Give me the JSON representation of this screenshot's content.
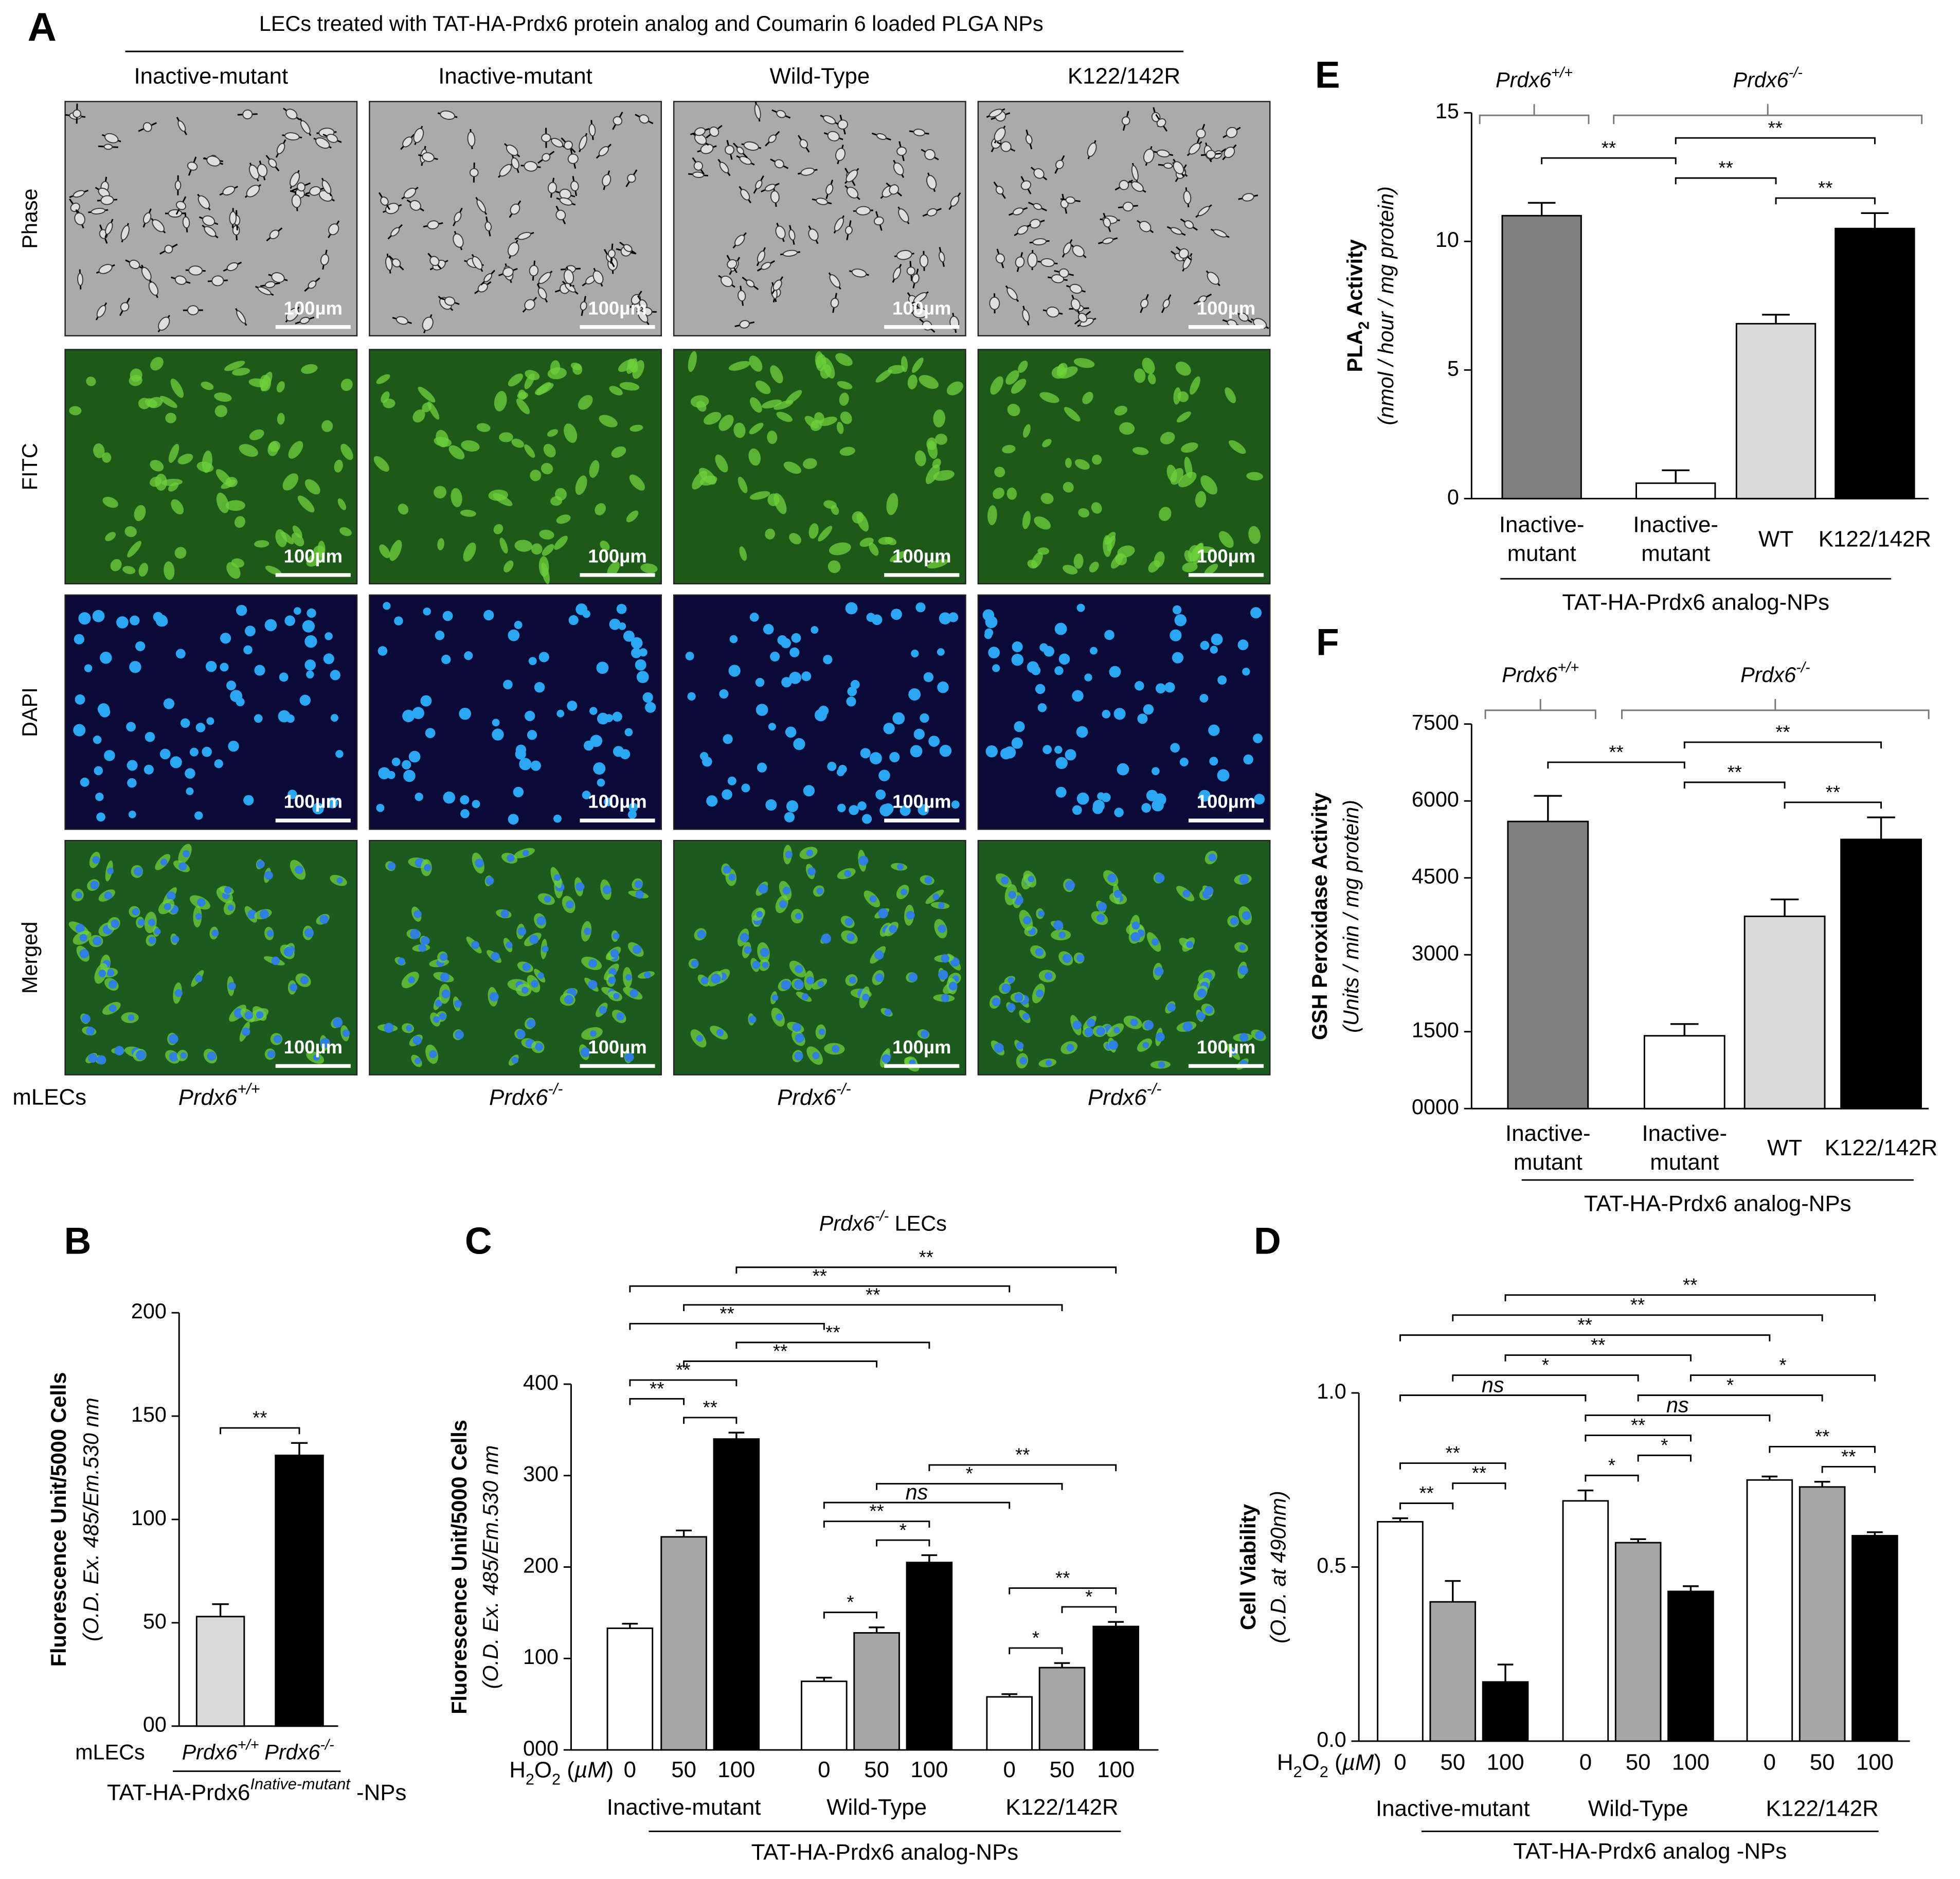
{
  "panel_a": {
    "label": "A",
    "title": "LECs treated with TAT-HA-Prdx6 protein analog and Coumarin 6 loaded PLGA NPs",
    "columns": [
      "Inactive-mutant",
      "Inactive-mutant",
      "Wild-Type",
      "K122/142R"
    ],
    "rows": [
      "Phase",
      "FITC",
      "DAPI",
      "Merged"
    ],
    "scale_bar": "100µm",
    "row_label": "mLECs",
    "genotypes": [
      [
        {
          "t": "Prdx6",
          "italic": true
        },
        {
          "t": "+/+",
          "sup": true,
          "italic": true
        }
      ],
      [
        {
          "t": "Prdx6",
          "italic": true
        },
        {
          "t": "-/-",
          "sup": true,
          "italic": true
        }
      ],
      [
        {
          "t": "Prdx6",
          "italic": true
        },
        {
          "t": "-/-",
          "sup": true,
          "italic": true
        }
      ],
      [
        {
          "t": "Prdx6",
          "italic": true
        },
        {
          "t": "-/-",
          "sup": true,
          "italic": true
        }
      ]
    ]
  },
  "chart_data": [
    {
      "type": "bar",
      "panel": "E",
      "ylabel": [
        {
          "t": "PLA"
        },
        {
          "t": "2",
          "sub": true
        },
        {
          "t": " Activity"
        }
      ],
      "ylabel_note": "(nmol / hour / mg protein)",
      "categories": [
        [
          "Inactive-",
          "mutant"
        ],
        [
          "Inactive-",
          "mutant"
        ],
        [
          "WT"
        ],
        [
          "K122/142R"
        ]
      ],
      "values": [
        11.0,
        0.6,
        6.8,
        10.5
      ],
      "errors": [
        0.5,
        0.5,
        0.35,
        0.6
      ],
      "colors": [
        "#7f7f7f",
        "#ffffff",
        "#d9d9d9",
        "#000000"
      ],
      "ylim": [
        0,
        15
      ],
      "yticks": [
        0,
        5,
        10,
        15
      ],
      "genotype_groups": [
        {
          "label": [
            {
              "t": "Prdx6",
              "italic": true
            },
            {
              "t": "+/+",
              "sup": true,
              "italic": true
            }
          ],
          "span": [
            0,
            0
          ]
        },
        {
          "label": [
            {
              "t": "Prdx6",
              "italic": true
            },
            {
              "t": "-/-",
              "sup": true,
              "italic": true
            }
          ],
          "span": [
            1,
            3
          ]
        }
      ],
      "xlabel": "TAT-HA-Prdx6 analog-NPs",
      "annotations": [
        {
          "between": [
            1,
            2
          ],
          "label": "**"
        },
        {
          "between": [
            2,
            3
          ],
          "label": "**"
        },
        {
          "between": [
            0,
            1
          ],
          "label": "**"
        },
        {
          "between": [
            1,
            3
          ],
          "label": "**"
        }
      ]
    },
    {
      "type": "bar",
      "panel": "F",
      "ylabel": "GSH Peroxidase Activity",
      "ylabel_note": "(Units / min / mg protein)",
      "categories": [
        [
          "Inactive-",
          "mutant"
        ],
        [
          "Inactive-",
          "mutant"
        ],
        [
          "WT"
        ],
        [
          "K122/142R"
        ]
      ],
      "values": [
        5600,
        1420,
        3750,
        5250
      ],
      "errors": [
        500,
        230,
        330,
        430
      ],
      "colors": [
        "#7f7f7f",
        "#ffffff",
        "#d9d9d9",
        "#000000"
      ],
      "ylim": [
        0,
        7500
      ],
      "yticks": [
        {
          "value": 0,
          "label": "0000"
        },
        1500,
        3000,
        4500,
        6000,
        7500
      ],
      "genotype_groups": [
        {
          "label": [
            {
              "t": "Prdx6",
              "italic": true
            },
            {
              "t": "+/+",
              "sup": true,
              "italic": true
            }
          ],
          "span": [
            0,
            0
          ]
        },
        {
          "label": [
            {
              "t": "Prdx6",
              "italic": true
            },
            {
              "t": "-/-",
              "sup": true,
              "italic": true
            }
          ],
          "span": [
            1,
            3
          ]
        }
      ],
      "xlabel": "TAT-HA-Prdx6 analog-NPs",
      "annotations": [
        {
          "between": [
            1,
            2
          ],
          "label": "**"
        },
        {
          "between": [
            2,
            3
          ],
          "label": "**"
        },
        {
          "between": [
            0,
            1
          ],
          "label": "**"
        },
        {
          "between": [
            1,
            3
          ],
          "label": "**"
        }
      ]
    },
    {
      "type": "bar",
      "panel": "B",
      "ylabel": "Fluorescence Unit/5000 Cells",
      "ylabel_note": "(O.D. Ex. 485/Em.530 nm",
      "category_title": "mLECs",
      "categories": [
        [
          {
            "t": "Prdx6",
            "italic": true
          },
          {
            "t": "+/+",
            "sup": true,
            "italic": true
          }
        ],
        [
          {
            "t": "Prdx6",
            "italic": true
          },
          {
            "t": "-/-",
            "sup": true,
            "italic": true
          }
        ]
      ],
      "values": [
        53,
        131
      ],
      "errors": [
        6,
        6
      ],
      "colors": [
        "#d9d9d9",
        "#000000"
      ],
      "ylim": [
        0,
        200
      ],
      "yticks": [
        {
          "value": 0,
          "label": "00"
        },
        50,
        100,
        150,
        200
      ],
      "xlabel": [
        {
          "t": "TAT-HA-Prdx6"
        },
        {
          "t": "Inative-mutant",
          "sup": true,
          "italic": true
        },
        {
          "t": " -NPs"
        }
      ],
      "annotations": [
        {
          "between": [
            0,
            1
          ],
          "label": "**"
        }
      ]
    },
    {
      "type": "bar",
      "panel": "C",
      "title": [
        {
          "t": "Prdx6",
          "italic": true
        },
        {
          "t": "-/-",
          "sup": true,
          "italic": true
        },
        {
          "t": " LECs"
        }
      ],
      "ylabel": "Fluorescence Unit/5000 Cells",
      "ylabel_note": "(O.D. Ex. 485/Em.530 nm",
      "xprefix": [
        {
          "t": "H"
        },
        {
          "t": "2",
          "sub": true
        },
        {
          "t": "O"
        },
        {
          "t": "2",
          "sub": true
        },
        {
          "t": " ("
        },
        {
          "t": "µM",
          "italic": true
        },
        {
          "t": ")"
        }
      ],
      "categories": [
        "Inactive-mutant",
        "Wild-Type",
        "K122/142R"
      ],
      "series": [
        {
          "name": "0",
          "color": "#ffffff",
          "values": [
            133,
            75,
            58
          ],
          "errors": [
            5,
            4,
            3
          ]
        },
        {
          "name": "50",
          "color": "#a6a6a6",
          "values": [
            233,
            128,
            90
          ],
          "errors": [
            7,
            6,
            5
          ]
        },
        {
          "name": "100",
          "color": "#000000",
          "values": [
            340,
            205,
            135
          ],
          "errors": [
            7,
            8,
            5
          ]
        }
      ],
      "ylim": [
        0,
        400
      ],
      "yticks": [
        {
          "value": 0,
          "label": "000"
        },
        100,
        200,
        300,
        400
      ],
      "xlabel": "TAT-HA-Prdx6 analog-NPs",
      "annotations": [
        {
          "between": [
            [
              0,
              0
            ],
            [
              0,
              1
            ]
          ],
          "label": "**"
        },
        {
          "between": [
            [
              0,
              1
            ],
            [
              0,
              2
            ]
          ],
          "label": "**"
        },
        {
          "between": [
            [
              0,
              0
            ],
            [
              0,
              2
            ]
          ],
          "label": "**"
        },
        {
          "between": [
            [
              1,
              0
            ],
            [
              1,
              1
            ]
          ],
          "label": "*"
        },
        {
          "between": [
            [
              1,
              1
            ],
            [
              1,
              2
            ]
          ],
          "label": "*"
        },
        {
          "between": [
            [
              1,
              0
            ],
            [
              1,
              2
            ]
          ],
          "label": "**"
        },
        {
          "between": [
            [
              2,
              0
            ],
            [
              2,
              1
            ]
          ],
          "label": "*"
        },
        {
          "between": [
            [
              2,
              1
            ],
            [
              2,
              2
            ]
          ],
          "label": "*"
        },
        {
          "between": [
            [
              2,
              0
            ],
            [
              2,
              2
            ]
          ],
          "label": "**"
        },
        {
          "between": [
            [
              1,
              0
            ],
            [
              2,
              0
            ]
          ],
          "label": "ns"
        },
        {
          "between": [
            [
              1,
              1
            ],
            [
              2,
              1
            ]
          ],
          "label": "*"
        },
        {
          "between": [
            [
              1,
              2
            ],
            [
              2,
              2
            ]
          ],
          "label": "**"
        },
        {
          "between": [
            [
              0,
              0
            ],
            [
              1,
              0
            ]
          ],
          "label": "**"
        },
        {
          "between": [
            [
              0,
              0
            ],
            [
              2,
              0
            ]
          ],
          "label": "**"
        },
        {
          "between": [
            [
              0,
              1
            ],
            [
              1,
              1
            ]
          ],
          "label": "**"
        },
        {
          "between": [
            [
              0,
              1
            ],
            [
              2,
              1
            ]
          ],
          "label": "**"
        },
        {
          "between": [
            [
              0,
              2
            ],
            [
              1,
              2
            ]
          ],
          "label": "**"
        },
        {
          "between": [
            [
              0,
              2
            ],
            [
              2,
              2
            ]
          ],
          "label": "**"
        }
      ]
    },
    {
      "type": "bar",
      "panel": "D",
      "ylabel": "Cell Viability",
      "ylabel_note": "(O.D. at 490nm)",
      "xprefix": [
        {
          "t": "H"
        },
        {
          "t": "2",
          "sub": true
        },
        {
          "t": "O"
        },
        {
          "t": "2",
          "sub": true
        },
        {
          "t": " ("
        },
        {
          "t": "µM",
          "italic": true
        },
        {
          "t": ")"
        }
      ],
      "categories": [
        "Inactive-mutant",
        "Wild-Type",
        "K122/142R"
      ],
      "series": [
        {
          "name": "0",
          "color": "#ffffff",
          "values": [
            0.63,
            0.69,
            0.75
          ],
          "errors": [
            0.01,
            0.03,
            0.01
          ]
        },
        {
          "name": "50",
          "color": "#a6a6a6",
          "values": [
            0.4,
            0.57,
            0.73
          ],
          "errors": [
            0.06,
            0.01,
            0.015
          ]
        },
        {
          "name": "100",
          "color": "#000000",
          "values": [
            0.17,
            0.43,
            0.59
          ],
          "errors": [
            0.05,
            0.015,
            0.01
          ]
        }
      ],
      "ylim": [
        0,
        1
      ],
      "yticks": [
        {
          "value": 0,
          "label": "0.0"
        },
        0.5,
        {
          "value": 1,
          "label": "1.0"
        }
      ],
      "xlabel": "TAT-HA-Prdx6 analog -NPs",
      "annotations": [
        {
          "between": [
            [
              0,
              0
            ],
            [
              0,
              1
            ]
          ],
          "label": "**"
        },
        {
          "between": [
            [
              0,
              1
            ],
            [
              0,
              2
            ]
          ],
          "label": "**"
        },
        {
          "between": [
            [
              0,
              0
            ],
            [
              0,
              2
            ]
          ],
          "label": "**"
        },
        {
          "between": [
            [
              1,
              0
            ],
            [
              1,
              1
            ]
          ],
          "label": "*"
        },
        {
          "between": [
            [
              1,
              1
            ],
            [
              1,
              2
            ]
          ],
          "label": "*"
        },
        {
          "between": [
            [
              1,
              0
            ],
            [
              1,
              2
            ]
          ],
          "label": "**"
        },
        {
          "between": [
            [
              2,
              1
            ],
            [
              2,
              2
            ]
          ],
          "label": "**"
        },
        {
          "between": [
            [
              2,
              0
            ],
            [
              2,
              2
            ]
          ],
          "label": "**"
        },
        {
          "between": [
            [
              0,
              0
            ],
            [
              1,
              0
            ]
          ],
          "label": "ns"
        },
        {
          "between": [
            [
              0,
              0
            ],
            [
              2,
              0
            ]
          ],
          "label": "**"
        },
        {
          "between": [
            [
              0,
              1
            ],
            [
              1,
              1
            ]
          ],
          "label": "*"
        },
        {
          "between": [
            [
              0,
              1
            ],
            [
              2,
              1
            ]
          ],
          "label": "**"
        },
        {
          "between": [
            [
              0,
              2
            ],
            [
              1,
              2
            ]
          ],
          "label": "**"
        },
        {
          "between": [
            [
              0,
              2
            ],
            [
              2,
              2
            ]
          ],
          "label": "**"
        },
        {
          "between": [
            [
              1,
              0
            ],
            [
              2,
              0
            ]
          ],
          "label": "ns"
        },
        {
          "between": [
            [
              1,
              1
            ],
            [
              2,
              1
            ]
          ],
          "label": "*"
        },
        {
          "between": [
            [
              1,
              2
            ],
            [
              2,
              2
            ]
          ],
          "label": "*"
        }
      ]
    }
  ]
}
